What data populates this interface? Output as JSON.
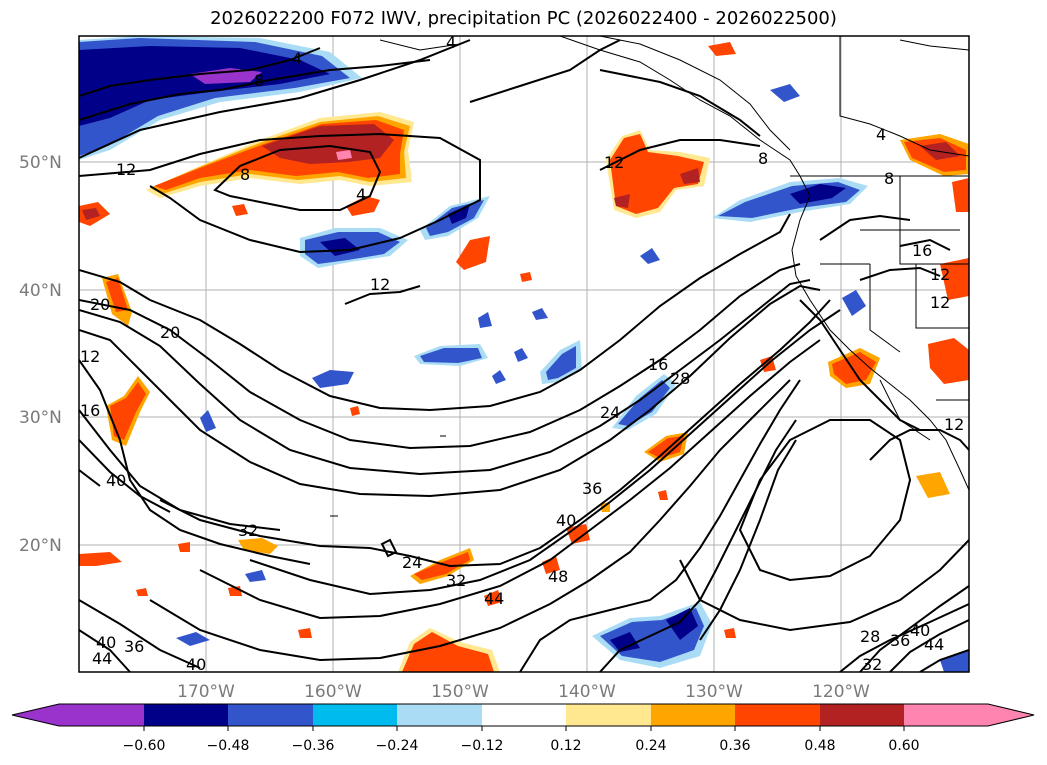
{
  "title": "2026022200 F072 IWV, precipitation PC (2026022400 - 2026022500)",
  "lat_labels": [
    "50°N",
    "40°N",
    "30°N",
    "20°N"
  ],
  "lon_labels": [
    "170°W",
    "160°W",
    "150°W",
    "140°W",
    "130°W",
    "120°W"
  ],
  "colorbar": {
    "labels": [
      "−0.60",
      "−0.48",
      "−0.36",
      "−0.24",
      "−0.12",
      "0.12",
      "0.24",
      "0.36",
      "0.48",
      "0.60"
    ],
    "colors": [
      "#9933cc",
      "#000088",
      "#3355cc",
      "#00bbee",
      "#aaddf5",
      "#ffffff",
      "#ffe890",
      "#ffa500",
      "#ff4500",
      "#b22222",
      "#ff85b0"
    ]
  },
  "contour_labels": [
    "4",
    "8",
    "12",
    "12",
    "4",
    "8",
    "12",
    "12",
    "20",
    "12",
    "16",
    "20",
    "40",
    "32",
    "24",
    "16",
    "28",
    "24",
    "36",
    "40",
    "32",
    "44",
    "48",
    "40",
    "36",
    "44",
    "28",
    "32",
    "36",
    "40",
    "44",
    "12",
    "16",
    "12",
    "8",
    "4",
    "4",
    "8",
    "40"
  ]
}
